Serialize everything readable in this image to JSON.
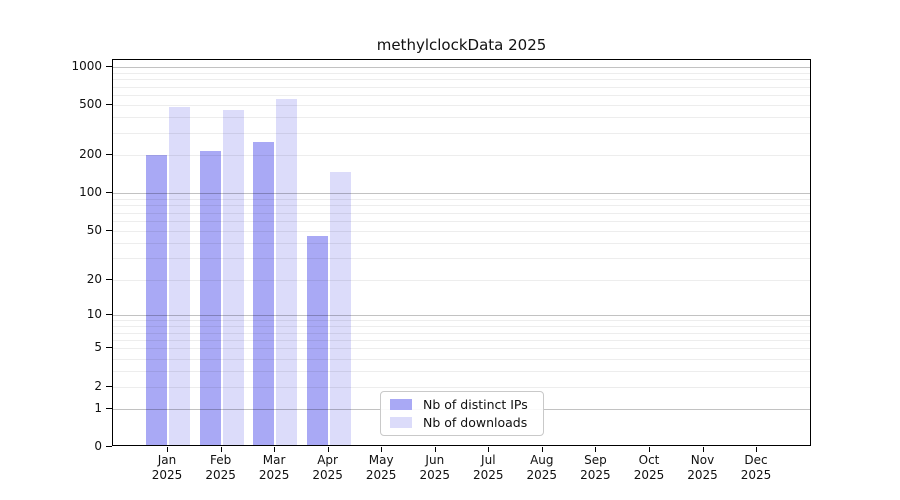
{
  "chart_data": {
    "type": "bar",
    "title": "methylclockData 2025",
    "x_categories": [
      "Jan",
      "Feb",
      "Mar",
      "Apr",
      "May",
      "Jun",
      "Jul",
      "Aug",
      "Sep",
      "Oct",
      "Nov",
      "Dec"
    ],
    "x_sublabel": "2025",
    "series": [
      {
        "name": "Nb of distinct IPs",
        "color": "#a9a9f5",
        "values": [
          195,
          209,
          244,
          44,
          null,
          null,
          null,
          null,
          null,
          null,
          null,
          null
        ]
      },
      {
        "name": "Nb of downloads",
        "color": "#dcdcfa",
        "values": [
          465,
          440,
          540,
          142,
          null,
          null,
          null,
          null,
          null,
          null,
          null,
          null
        ]
      }
    ],
    "y_scale": "log10(1+x)",
    "y_ticks": [
      1000,
      500,
      200,
      100,
      50,
      20,
      10,
      5,
      2,
      1,
      0
    ],
    "ylim": [
      0,
      1135
    ],
    "grid": "horizontal",
    "legend_position": "lower center",
    "colors": {
      "axis": "#000000",
      "grid_minor": "#ececec",
      "grid_major": "#c2c2c2",
      "background": "#ffffff"
    }
  }
}
